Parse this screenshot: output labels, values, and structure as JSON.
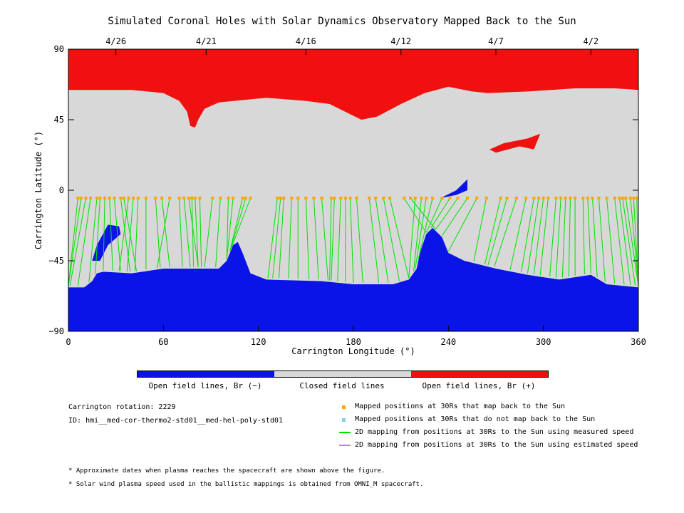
{
  "chart_data": {
    "type": "heatmap",
    "title": "Simulated Coronal Holes with Solar Dynamics Observatory Mapped Back to the Sun",
    "xlabel": "Carrington Longitude (°)",
    "ylabel": "Carrington Latitude (°)",
    "xlim": [
      0,
      360
    ],
    "ylim": [
      -90,
      90
    ],
    "x_ticks": [
      "0",
      "60",
      "120",
      "180",
      "240",
      "300",
      "360"
    ],
    "y_ticks": [
      "90",
      "45",
      "0",
      "−45",
      "−90"
    ],
    "date_ticks": [
      {
        "lon": 30,
        "label": "4/26"
      },
      {
        "lon": 87,
        "label": "4/21"
      },
      {
        "lon": 150,
        "label": "4/16"
      },
      {
        "lon": 210,
        "label": "4/12"
      },
      {
        "lon": 270,
        "label": "4/7"
      },
      {
        "lon": 330,
        "label": "4/2"
      }
    ],
    "colorbar": [
      {
        "label": "Open field lines, Br (−)",
        "color": "#0a14e6"
      },
      {
        "label": "Closed field lines",
        "color": "#d8d8d8"
      },
      {
        "label": "Open field lines, Br (+)",
        "color": "#f01010"
      }
    ],
    "north_boundary": [
      [
        0,
        64
      ],
      [
        10,
        64
      ],
      [
        40,
        64
      ],
      [
        60,
        62
      ],
      [
        70,
        57
      ],
      [
        75,
        50
      ],
      [
        77,
        41
      ],
      [
        80,
        40
      ],
      [
        82,
        45
      ],
      [
        86,
        52
      ],
      [
        95,
        56
      ],
      [
        115,
        58
      ],
      [
        125,
        59
      ],
      [
        150,
        57
      ],
      [
        165,
        55
      ],
      [
        175,
        50
      ],
      [
        185,
        45
      ],
      [
        195,
        47
      ],
      [
        210,
        55
      ],
      [
        225,
        62
      ],
      [
        240,
        66
      ],
      [
        255,
        63
      ],
      [
        265,
        62
      ],
      [
        290,
        63
      ],
      [
        320,
        65
      ],
      [
        345,
        65
      ],
      [
        360,
        64
      ]
    ],
    "south_boundary": [
      [
        0,
        -62
      ],
      [
        10,
        -62
      ],
      [
        15,
        -58
      ],
      [
        18,
        -53
      ],
      [
        22,
        -52
      ],
      [
        40,
        -53
      ],
      [
        60,
        -50
      ],
      [
        80,
        -50
      ],
      [
        95,
        -50
      ],
      [
        100,
        -45
      ],
      [
        104,
        -35
      ],
      [
        107,
        -33
      ],
      [
        110,
        -40
      ],
      [
        115,
        -53
      ],
      [
        125,
        -57
      ],
      [
        160,
        -58
      ],
      [
        180,
        -60
      ],
      [
        205,
        -60
      ],
      [
        215,
        -57
      ],
      [
        220,
        -50
      ],
      [
        222,
        -40
      ],
      [
        226,
        -28
      ],
      [
        230,
        -24
      ],
      [
        236,
        -30
      ],
      [
        240,
        -40
      ],
      [
        250,
        -45
      ],
      [
        270,
        -50
      ],
      [
        290,
        -54
      ],
      [
        310,
        -57
      ],
      [
        330,
        -54
      ],
      [
        340,
        -60
      ],
      [
        360,
        -62
      ]
    ],
    "footpoint_lat": -5,
    "mapped_longitudes": [
      6,
      8,
      11,
      14,
      18,
      20,
      23,
      26,
      29,
      33,
      35,
      38,
      41,
      44,
      49,
      55,
      59,
      64,
      70,
      73,
      76,
      78,
      80,
      83,
      91,
      96,
      101,
      104,
      110,
      112,
      115,
      132,
      134,
      136,
      141,
      145,
      150,
      155,
      160,
      166,
      168,
      172,
      175,
      178,
      182,
      190,
      194,
      199,
      203,
      212,
      216,
      219,
      223,
      226,
      230,
      236,
      241,
      246,
      252,
      258,
      264,
      273,
      277,
      283,
      289,
      294,
      297,
      300,
      303,
      308,
      311,
      314,
      317,
      320,
      325,
      328,
      331,
      335,
      340,
      345,
      348,
      350,
      352,
      355,
      357,
      359
    ],
    "mapping_offsets": [
      -16,
      -12,
      -10,
      -8,
      -5,
      -3,
      -1,
      2,
      4,
      6,
      8,
      -6,
      -4,
      -2,
      0,
      3,
      5,
      -8,
      2,
      4,
      6,
      1,
      2,
      1,
      -5,
      -3,
      -1,
      -4,
      -8,
      -10,
      -12,
      -6,
      -5,
      -3,
      -2,
      0,
      2,
      3,
      4,
      -1,
      -2,
      -2,
      0,
      2,
      4,
      6,
      8,
      10,
      12,
      14,
      16,
      -4,
      -5,
      -7,
      -9,
      -10,
      -12,
      -14,
      -16,
      -18,
      -8,
      -10,
      -12,
      -14,
      -10,
      -8,
      -7,
      -6,
      -5,
      -4,
      -3,
      -2,
      -1,
      0,
      1,
      2,
      3,
      4,
      5,
      6,
      7,
      8,
      9,
      10,
      10,
      10
    ],
    "legend": [
      {
        "label": "Mapped positions at 30Rs that map back to the Sun",
        "color": "#ffa500",
        "kind": "square"
      },
      {
        "label": "Mapped positions at 30Rs that do not map back to the Sun",
        "color": "#87ceeb",
        "kind": "square"
      },
      {
        "label": "2D mapping from positions at 30Rs to the Sun using measured speed",
        "color": "#00e000",
        "kind": "line"
      },
      {
        "label": "2D mapping from positions at 30Rs to the Sun using estimated speed",
        "color": "#b080ff",
        "kind": "line"
      }
    ]
  },
  "info": {
    "rotation": "Carrington rotation: 2229",
    "id": "ID: hmi__med-cor-thermo2-std01__med-hel-poly-std01"
  },
  "notes": [
    "* Approximate dates when plasma reaches the spacecraft are shown above the figure.",
    "* Solar wind plasma speed used in the ballistic mappings is obtained from OMNI_M spacecraft."
  ]
}
